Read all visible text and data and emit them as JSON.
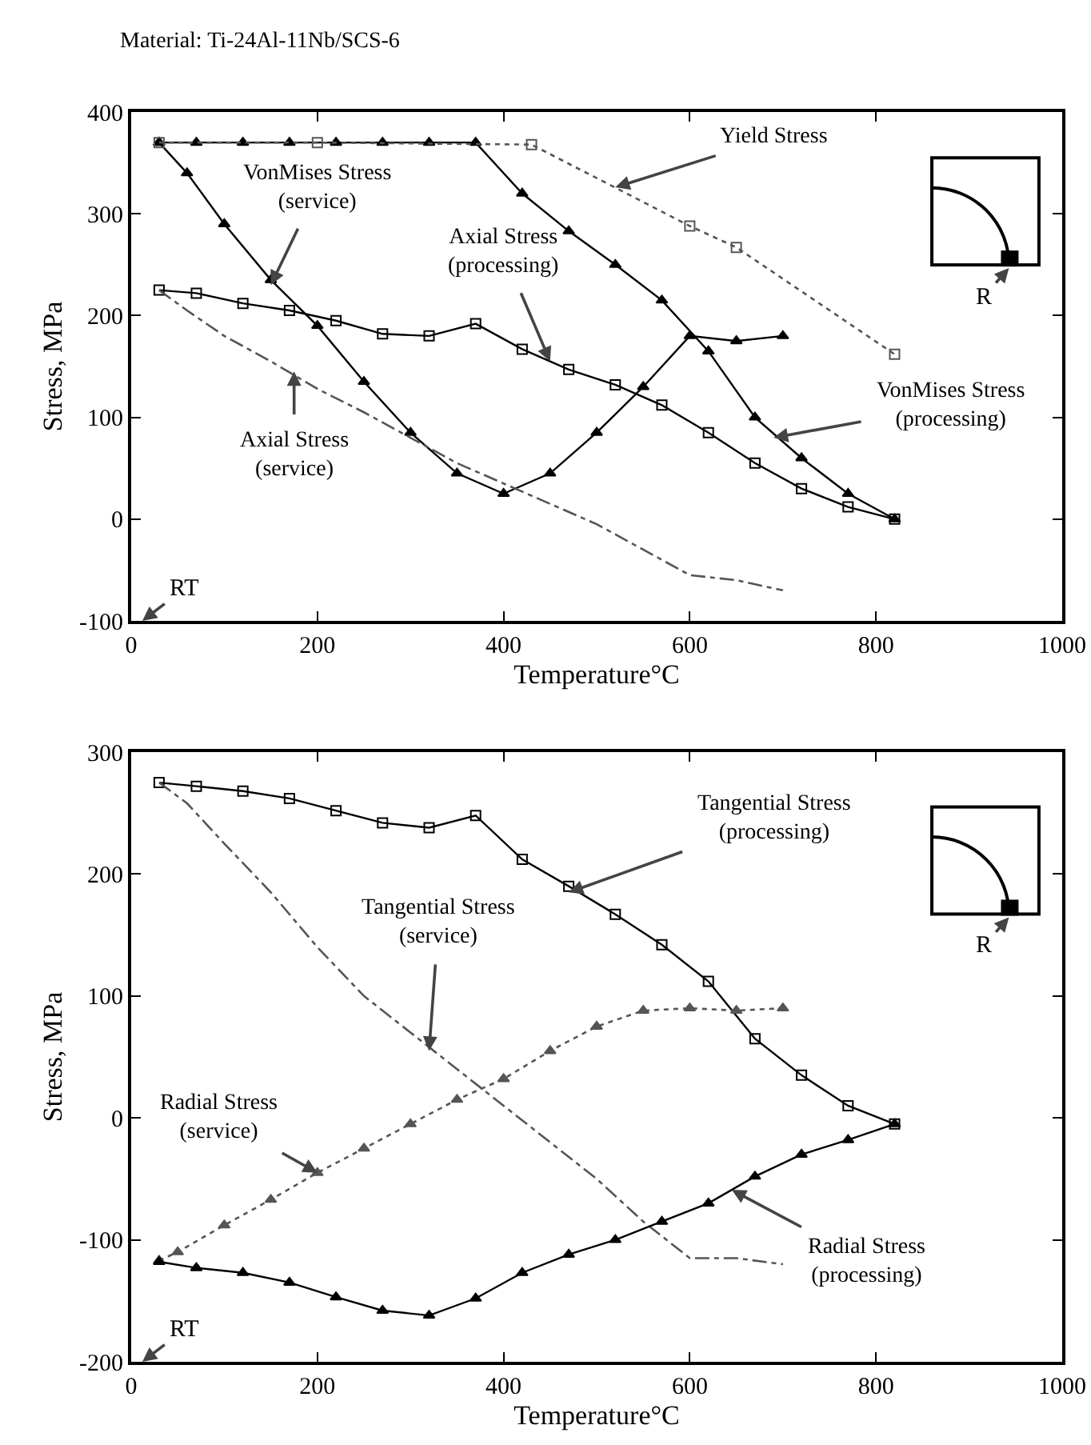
{
  "chart_data": [
    {
      "type": "line",
      "title": "Material: Ti-24Al-11Nb/SCS-6",
      "xlabel": "Temperature°C",
      "ylabel": "Stress, MPa",
      "xlim": [
        0,
        1000
      ],
      "ylim": [
        -100,
        400
      ],
      "xticks": [
        0,
        200,
        400,
        600,
        800,
        1000
      ],
      "yticks": [
        -100,
        0,
        100,
        200,
        300,
        400
      ],
      "grid": false,
      "series": [
        {
          "color": "#000000",
          "marker": "triangle",
          "line_style": "solid",
          "x": [
            30,
            60,
            100,
            150,
            200,
            250,
            300,
            350,
            400,
            450,
            500,
            550,
            600,
            650,
            700
          ],
          "values": [
            370,
            340,
            290,
            235,
            190,
            135,
            85,
            45,
            25,
            45,
            85,
            130,
            180,
            175,
            180
          ]
        },
        {
          "color": "#000000",
          "marker": "triangle",
          "line_style": "solid",
          "x": [
            30,
            70,
            120,
            170,
            220,
            270,
            320,
            370,
            420,
            470,
            520,
            570,
            620,
            670,
            720,
            770,
            820
          ],
          "values": [
            370,
            370,
            370,
            370,
            370,
            370,
            370,
            370,
            320,
            283,
            250,
            215,
            165,
            100,
            60,
            25,
            0
          ]
        },
        {
          "color": "#555555",
          "marker": "square",
          "line_style": "dotted",
          "x": [
            30,
            200,
            430,
            600,
            650,
            820
          ],
          "values": [
            370,
            370,
            368,
            288,
            267,
            162
          ]
        },
        {
          "color": "#000000",
          "marker": "square",
          "line_style": "solid",
          "x": [
            30,
            70,
            120,
            170,
            220,
            270,
            320,
            370,
            420,
            470,
            520,
            570,
            620,
            670,
            720,
            770,
            820
          ],
          "values": [
            225,
            222,
            212,
            205,
            195,
            182,
            180,
            192,
            167,
            147,
            132,
            112,
            85,
            55,
            30,
            12,
            0
          ]
        },
        {
          "color": "#555555",
          "marker": "none",
          "line_style": "dashed",
          "x": [
            30,
            60,
            100,
            150,
            200,
            250,
            300,
            350,
            400,
            450,
            500,
            550,
            600,
            650,
            700
          ],
          "values": [
            225,
            205,
            180,
            155,
            128,
            105,
            80,
            55,
            35,
            15,
            -5,
            -30,
            -55,
            -60,
            -70
          ]
        }
      ],
      "annotations": [
        {
          "text": "VonMises Stress\n(service)",
          "x": 150,
          "y": 230
        },
        {
          "text": "Yield Stress",
          "x": 520,
          "y": 326
        },
        {
          "text": "Axial Stress\n(processing)",
          "x": 450,
          "y": 155
        },
        {
          "text": "VonMises Stress\n(processing)",
          "x": 690,
          "y": 80
        },
        {
          "text": "Axial Stress\n(service)",
          "x": 175,
          "y": 145
        },
        "RT",
        "R"
      ]
    },
    {
      "type": "line",
      "xlabel": "Temperature°C",
      "ylabel": "Stress, MPa",
      "xlim": [
        0,
        1000
      ],
      "ylim": [
        -200,
        300
      ],
      "xticks": [
        0,
        200,
        400,
        600,
        800,
        1000
      ],
      "yticks": [
        -200,
        -100,
        0,
        100,
        200,
        300
      ],
      "grid": false,
      "series": [
        {
          "color": "#000000",
          "marker": "square",
          "line_style": "solid",
          "x": [
            30,
            70,
            120,
            170,
            220,
            270,
            320,
            370,
            420,
            470,
            520,
            570,
            620,
            670,
            720,
            770,
            820
          ],
          "values": [
            275,
            272,
            268,
            262,
            252,
            242,
            238,
            248,
            212,
            190,
            167,
            142,
            112,
            65,
            35,
            10,
            -5
          ]
        },
        {
          "color": "#555555",
          "marker": "none",
          "line_style": "dashed",
          "x": [
            30,
            60,
            100,
            150,
            200,
            250,
            300,
            350,
            400,
            450,
            500,
            550,
            600,
            650,
            700
          ],
          "values": [
            275,
            258,
            225,
            185,
            140,
            100,
            70,
            40,
            10,
            -20,
            -50,
            -85,
            -115,
            -115,
            -120
          ]
        },
        {
          "color": "#555555",
          "marker": "triangle",
          "line_style": "dotted",
          "x": [
            30,
            50,
            100,
            150,
            200,
            250,
            300,
            350,
            400,
            450,
            500,
            550,
            600,
            650,
            700
          ],
          "values": [
            -117,
            -110,
            -88,
            -67,
            -45,
            -25,
            -5,
            15,
            32,
            55,
            75,
            88,
            90,
            88,
            90
          ]
        },
        {
          "color": "#000000",
          "marker": "triangle",
          "line_style": "solid",
          "x": [
            30,
            70,
            120,
            170,
            220,
            270,
            320,
            370,
            420,
            470,
            520,
            570,
            620,
            670,
            720,
            770,
            820
          ],
          "values": [
            -118,
            -123,
            -127,
            -135,
            -147,
            -158,
            -162,
            -148,
            -127,
            -112,
            -100,
            -85,
            -70,
            -48,
            -30,
            -18,
            -5
          ]
        }
      ],
      "annotations": [
        {
          "text": "Tangential Stress\n(processing)",
          "x": 470,
          "y": 185
        },
        {
          "text": "Tangential Stress\n(service)",
          "x": 320,
          "y": 55
        },
        {
          "text": "Radial Stress\n(service)",
          "x": 200,
          "y": -45
        },
        {
          "text": "Radial Stress\n(processing)",
          "x": 645,
          "y": -59
        },
        "RT",
        "R"
      ]
    }
  ]
}
